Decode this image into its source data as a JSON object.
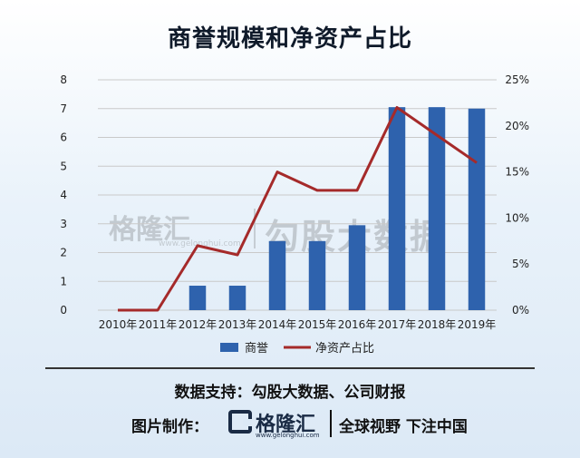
{
  "title": "商誉规模和净资产占比",
  "watermark": {
    "logo": "格隆汇",
    "url": "www.gelonghui.com",
    "text": "勾股大数据"
  },
  "footer": {
    "source": "数据支持：勾股大数据、公司财报",
    "producer_label": "图片制作：",
    "brand_name": "格隆汇",
    "brand_url": "www.gelonghui.com",
    "slogan": "全球视野 下注中国"
  },
  "colors": {
    "bar": "#2e62ad",
    "line": "#a52a2a",
    "grid": "#c9c9c9"
  },
  "chart_data": {
    "type": "bar",
    "title": "商誉规模和净资产占比",
    "categories": [
      "2010年",
      "2011年",
      "2012年",
      "2013年",
      "2014年",
      "2015年",
      "2016年",
      "2017年",
      "2018年",
      "2019年"
    ],
    "series": [
      {
        "name": "商誉",
        "type": "bar",
        "axis": "left",
        "values": [
          0,
          0,
          0.85,
          0.85,
          2.4,
          2.4,
          2.95,
          7.05,
          7.05,
          7.0
        ]
      },
      {
        "name": "净资产占比",
        "type": "line",
        "axis": "right",
        "values": [
          0,
          0,
          7,
          6,
          15,
          13,
          13,
          22,
          19,
          16
        ]
      }
    ],
    "ylim_left": [
      0,
      8
    ],
    "yticks_left": [
      "0",
      "1",
      "2",
      "3",
      "4",
      "5",
      "6",
      "7",
      "8"
    ],
    "ylim_right": [
      0,
      25
    ],
    "yticks_right": [
      "0%",
      "5%",
      "10%",
      "15%",
      "20%",
      "25%"
    ],
    "grid": true,
    "legend_position": "bottom"
  }
}
